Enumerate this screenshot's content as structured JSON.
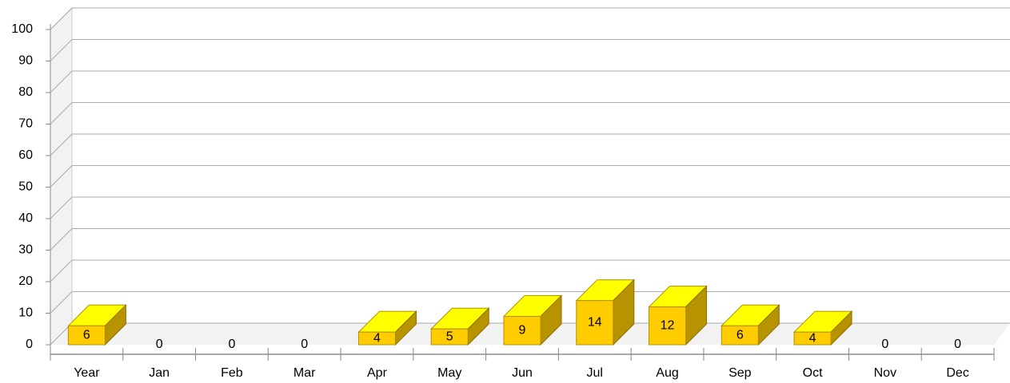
{
  "chart_data": {
    "type": "bar3d",
    "categories": [
      "Year",
      "Jan",
      "Feb",
      "Mar",
      "Apr",
      "May",
      "Jun",
      "Jul",
      "Aug",
      "Sep",
      "Oct",
      "Nov",
      "Dec"
    ],
    "values": [
      6,
      0,
      0,
      0,
      4,
      5,
      9,
      14,
      12,
      6,
      4,
      0,
      0
    ],
    "color": "#ffcc00",
    "ylim": [
      0,
      100
    ],
    "yticks": [
      0,
      10,
      20,
      30,
      40,
      50,
      60,
      70,
      80,
      90,
      100
    ],
    "grid": true
  }
}
